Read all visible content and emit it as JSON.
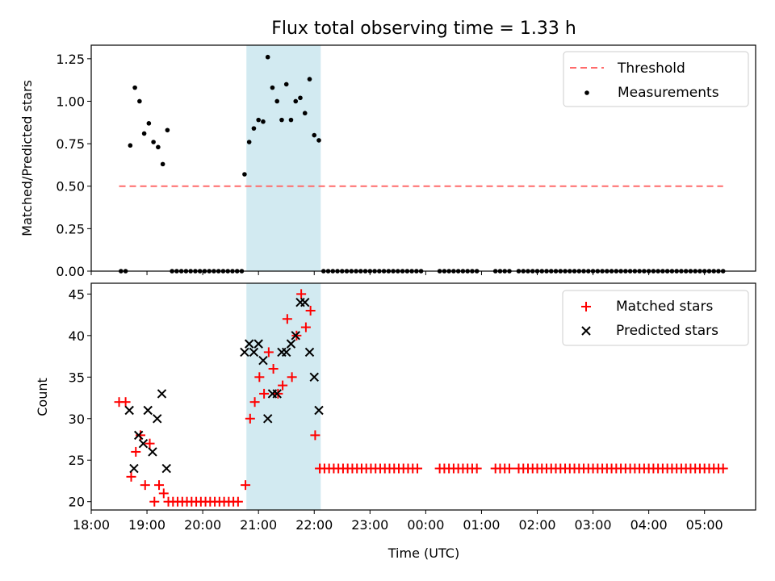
{
  "title": "Flux total observing time = 1.33 h",
  "colors": {
    "threshold": "#ff6b6b",
    "measurements": "#000000",
    "matched": "#ff0000",
    "predicted": "#000000",
    "highlight": "#add8e6"
  },
  "chart_data": [
    {
      "type": "scatter",
      "panel": "top",
      "ylabel": "Matched/Predicted stars",
      "xlabel": "",
      "ylim": [
        0,
        1.33
      ],
      "xlim": [
        "18:00",
        "05:55"
      ],
      "yticks": [
        "0.00",
        "0.25",
        "0.50",
        "0.75",
        "1.00",
        "1.25"
      ],
      "xticks": [
        "18:00",
        "19:00",
        "20:00",
        "21:00",
        "22:00",
        "23:00",
        "00:00",
        "01:00",
        "02:00",
        "03:00",
        "04:00",
        "05:00"
      ],
      "legend": {
        "placement": "top-right",
        "entries": [
          "Threshold",
          "Measurements"
        ]
      },
      "highlight_span": [
        "20:47",
        "22:07"
      ],
      "series": [
        {
          "name": "Threshold",
          "style": "dashed-line",
          "x": [
            "18:30",
            "05:20"
          ],
          "y": [
            0.5,
            0.5
          ]
        },
        {
          "name": "Measurements",
          "style": "points",
          "x": [
            "18:32",
            "18:37",
            "18:42",
            "18:47",
            "18:52",
            "18:57",
            "19:02",
            "19:07",
            "19:12",
            "19:17",
            "19:22",
            "20:45",
            "20:50",
            "20:55",
            "21:00",
            "21:05",
            "21:10",
            "21:15",
            "21:20",
            "21:25",
            "21:30",
            "21:35",
            "21:40",
            "21:45",
            "21:50",
            "21:55",
            "22:00",
            "22:05"
          ],
          "y": [
            0.0,
            0.0,
            0.74,
            1.08,
            1.0,
            0.81,
            0.87,
            0.76,
            0.73,
            0.63,
            0.83,
            0.57,
            0.76,
            0.84,
            0.89,
            0.88,
            1.26,
            1.08,
            1.0,
            0.89,
            1.1,
            0.89,
            1.0,
            1.02,
            0.93,
            1.13,
            0.8,
            0.77
          ]
        },
        {
          "name": "",
          "style": "points-zero-line",
          "ranges": [
            [
              "19:27",
              "20:42"
            ],
            [
              "22:10",
              "23:55"
            ],
            [
              "00:15",
              "00:55"
            ],
            [
              "01:15",
              "01:30"
            ],
            [
              "01:40",
              "05:20"
            ]
          ],
          "y": 0.0
        }
      ]
    },
    {
      "type": "scatter",
      "panel": "bottom",
      "ylabel": "Count",
      "xlabel": "Time (UTC)",
      "ylim": [
        19,
        46.3
      ],
      "xlim": [
        "18:00",
        "05:55"
      ],
      "yticks": [
        "20",
        "25",
        "30",
        "35",
        "40",
        "45"
      ],
      "xticks": [
        "18:00",
        "19:00",
        "20:00",
        "21:00",
        "22:00",
        "23:00",
        "00:00",
        "01:00",
        "02:00",
        "03:00",
        "04:00",
        "05:00"
      ],
      "legend": {
        "placement": "top-right",
        "entries": [
          "Matched stars",
          "Predicted stars"
        ]
      },
      "highlight_span": [
        "20:47",
        "22:07"
      ],
      "series": [
        {
          "name": "Matched stars",
          "marker": "plus",
          "x": [
            "18:30",
            "18:37",
            "18:43",
            "18:48",
            "18:53",
            "18:58",
            "19:03",
            "19:08",
            "19:13",
            "19:18",
            "20:46",
            "20:51",
            "20:56",
            "21:01",
            "21:06",
            "21:11",
            "21:16",
            "21:21",
            "21:26",
            "21:31",
            "21:36",
            "21:41",
            "21:46",
            "21:51",
            "21:56",
            "22:01",
            "22:06"
          ],
          "y": [
            32,
            32,
            23,
            26,
            28,
            22,
            27,
            20,
            22,
            21,
            22,
            30,
            32,
            35,
            33,
            38,
            36,
            33,
            34,
            42,
            35,
            40,
            45,
            41,
            43,
            28,
            24
          ],
          "baseline_ranges": [
            {
              "y": 20,
              "from": "19:23",
              "to": "20:41"
            },
            {
              "y": 24,
              "from": "22:06",
              "to": "23:55"
            },
            {
              "y": 24,
              "from": "00:15",
              "to": "00:55"
            },
            {
              "y": 24,
              "from": "01:15",
              "to": "01:30"
            },
            {
              "y": 24,
              "from": "01:40",
              "to": "05:20"
            }
          ]
        },
        {
          "name": "Predicted stars",
          "marker": "x",
          "x": [
            "18:41",
            "18:46",
            "18:51",
            "18:56",
            "19:01",
            "19:06",
            "19:11",
            "19:16",
            "19:21",
            "20:45",
            "20:50",
            "20:55",
            "21:00",
            "21:05",
            "21:10",
            "21:15",
            "21:20",
            "21:25",
            "21:30",
            "21:35",
            "21:40",
            "21:45",
            "21:50",
            "21:55",
            "22:00",
            "22:05"
          ],
          "y": [
            31,
            24,
            28,
            27,
            31,
            26,
            30,
            33,
            24,
            38,
            39,
            38,
            39,
            37,
            30,
            33,
            33,
            38,
            38,
            39,
            40,
            44,
            44,
            38,
            35,
            31
          ]
        }
      ]
    }
  ]
}
